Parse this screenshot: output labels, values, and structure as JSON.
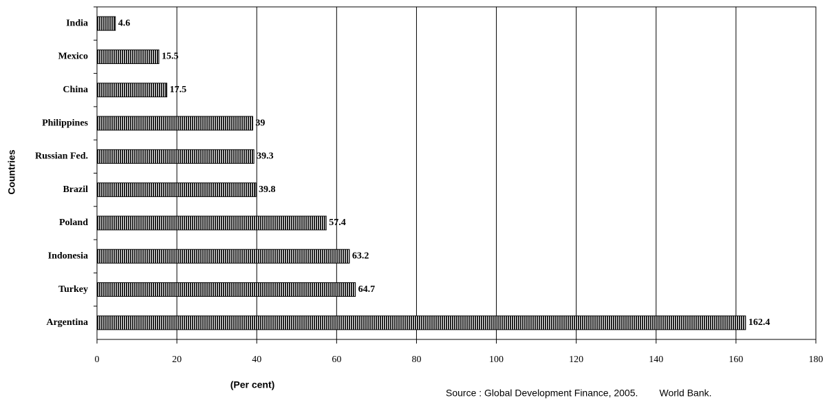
{
  "chart_data": {
    "type": "bar",
    "orientation": "horizontal",
    "categories": [
      "India",
      "Mexico",
      "China",
      "Philippines",
      "Russian Fed.",
      "Brazil",
      "Poland",
      "Indonesia",
      "Turkey",
      "Argentina"
    ],
    "values": [
      4.6,
      15.5,
      17.5,
      39,
      39.3,
      39.8,
      57.4,
      63.2,
      64.7,
      162.4
    ],
    "color": "#222222",
    "xlim": [
      0,
      180
    ],
    "xticks": [
      0,
      20,
      40,
      60,
      80,
      100,
      120,
      140,
      160,
      180
    ],
    "grid": true,
    "xlabel": "(Per cent)",
    "ylabel": "Countries",
    "source": "Source : Global Development Finance, 2005.        World Bank."
  }
}
